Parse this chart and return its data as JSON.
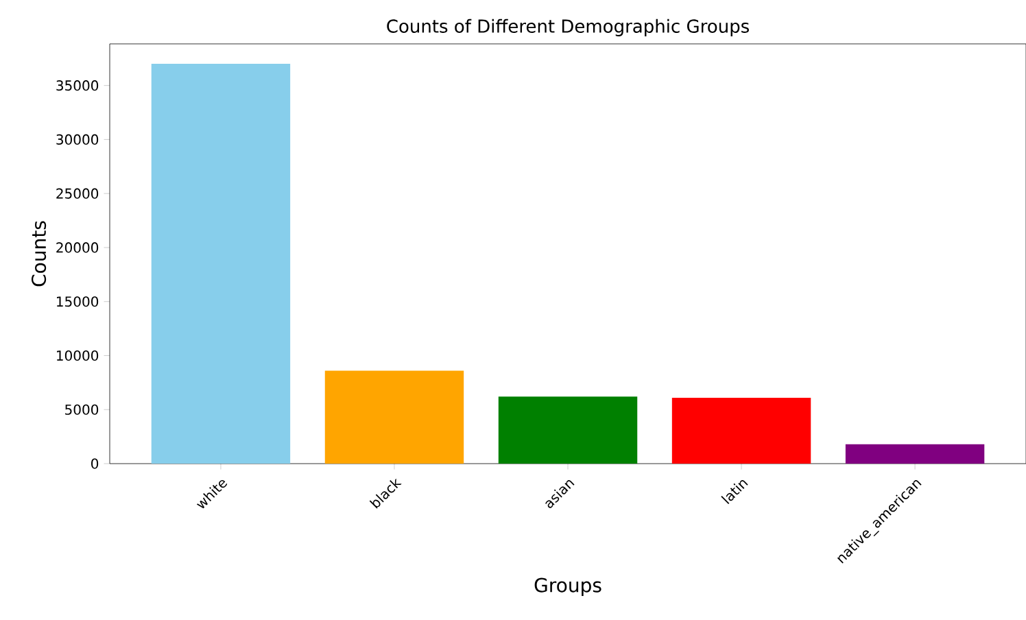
{
  "chart_data": {
    "type": "bar",
    "title": "Counts of Different Demographic Groups",
    "xlabel": "Groups",
    "ylabel": "Counts",
    "categories": [
      "white",
      "black",
      "asian",
      "latin",
      "native_american"
    ],
    "values": [
      37000,
      8600,
      6200,
      6100,
      1800
    ],
    "colors": [
      "#87ceeb",
      "#ffa500",
      "#008000",
      "#ff0000",
      "#800080"
    ],
    "ylim": [
      0,
      38850
    ],
    "yticks": [
      0,
      5000,
      10000,
      15000,
      20000,
      25000,
      30000,
      35000
    ]
  }
}
